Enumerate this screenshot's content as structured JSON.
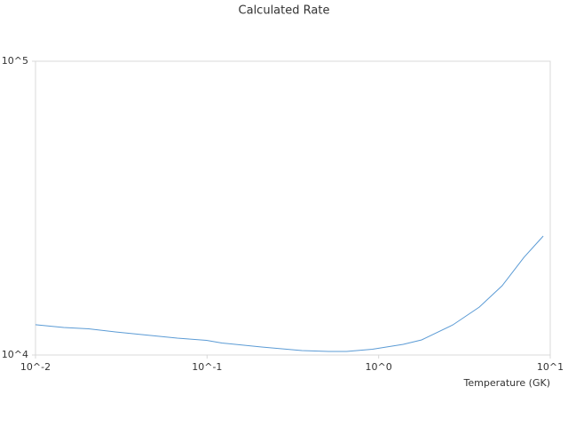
{
  "chart_data": {
    "type": "line",
    "title": "Calculated Rate",
    "x_label": "Temperature (GK)",
    "x_scale": "log",
    "y_scale": "log",
    "xlim": [
      0.01,
      10
    ],
    "ylim": [
      10000,
      100000
    ],
    "xticks": [
      {
        "value": 0.01,
        "label": "10^-2"
      },
      {
        "value": 0.1,
        "label": "10^-1"
      },
      {
        "value": 1,
        "label": "10^0"
      },
      {
        "value": 10,
        "label": "10^1"
      }
    ],
    "yticks": [
      {
        "value": 10000,
        "label": "10^4"
      },
      {
        "value": 100000,
        "label": "10^5"
      }
    ],
    "x": [
      0.01,
      0.0146,
      0.0204,
      0.0292,
      0.0417,
      0.0671,
      0.0993,
      0.122,
      0.208,
      0.357,
      0.51,
      0.65,
      0.92,
      1.39,
      1.78,
      2.71,
      3.86,
      5.24,
      7.03,
      9.1
    ],
    "series": [
      {
        "color": "#5b9bd5",
        "values": [
          12680,
          12410,
          12280,
          11980,
          11740,
          11410,
          11220,
          10985,
          10646,
          10354,
          10282,
          10282,
          10462,
          10870,
          11256,
          12670,
          14560,
          17200,
          21500,
          25400
        ]
      }
    ]
  }
}
